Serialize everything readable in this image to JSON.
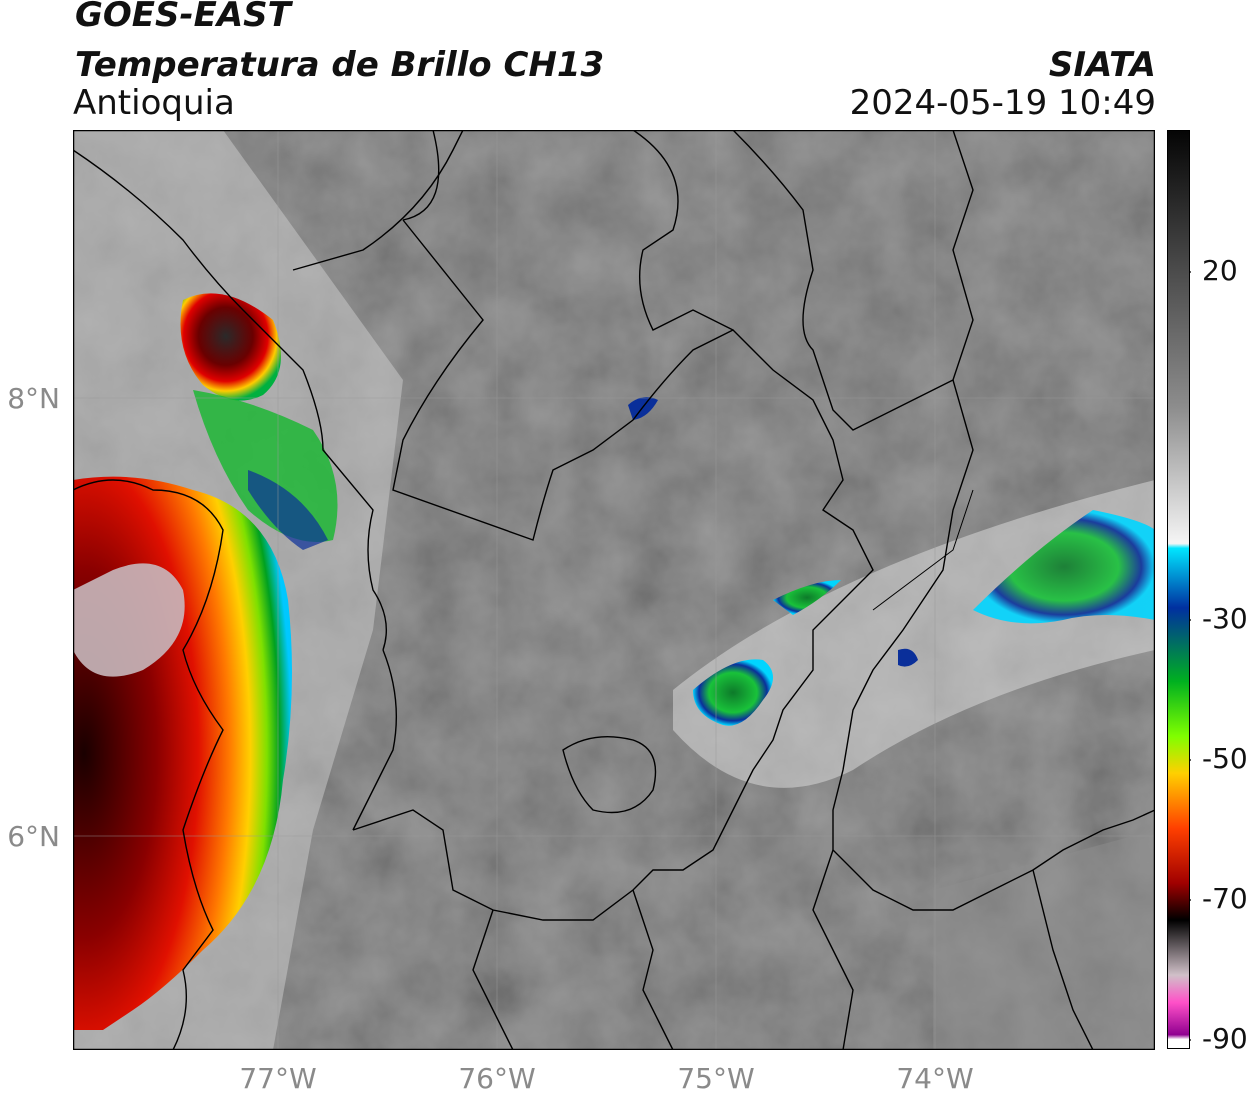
{
  "header": {
    "title_line1": "GOES-EAST",
    "title_line2": "Temperatura de Brillo CH13",
    "region": "Antioquia",
    "brand": "SIATA",
    "timestamp": "2024-05-19 10:49"
  },
  "axes": {
    "lat_labels": [
      "8°N",
      "6°N"
    ],
    "lon_labels": [
      "77°W",
      "76°W",
      "75°W",
      "74°W"
    ]
  },
  "colorbar": {
    "ticks": [
      "20",
      "-30",
      "-50",
      "-70",
      "-90"
    ]
  }
}
